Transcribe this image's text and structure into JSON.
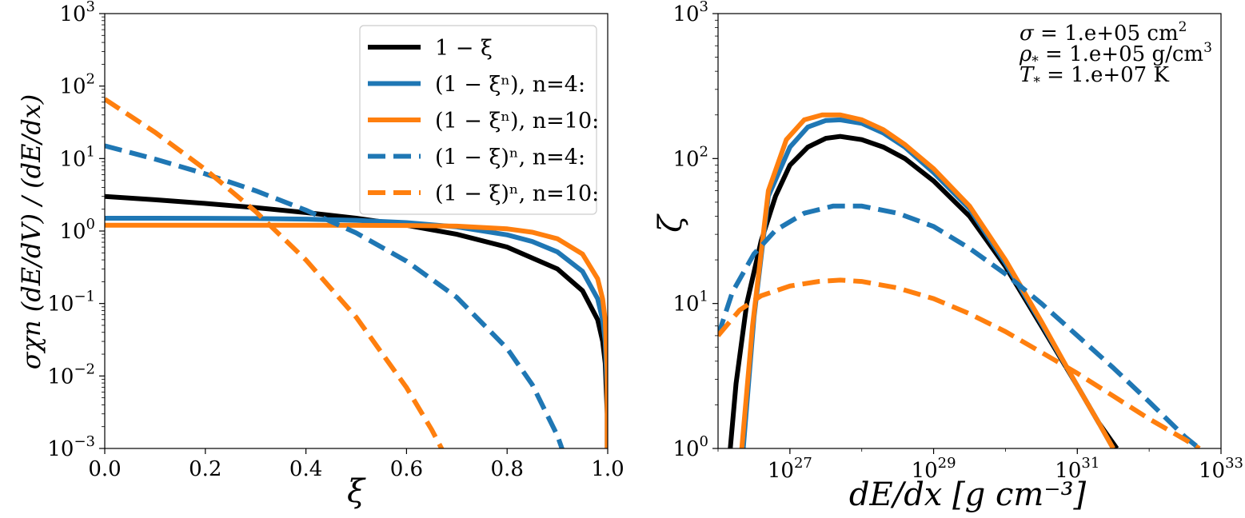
{
  "chart_data": [
    {
      "type": "line",
      "xscale": "linear",
      "yscale": "log",
      "xlim": [
        0,
        1
      ],
      "ylim": [
        0.001,
        1000
      ],
      "xlabel": "ξ",
      "ylabel": "σχn (dE/dV) / (dE/dx)",
      "xticks": [
        {
          "v": 0.0,
          "label": "0.0"
        },
        {
          "v": 0.2,
          "label": "0.2"
        },
        {
          "v": 0.4,
          "label": "0.4"
        },
        {
          "v": 0.6,
          "label": "0.6"
        },
        {
          "v": 0.8,
          "label": "0.8"
        },
        {
          "v": 1.0,
          "label": "1.0"
        }
      ],
      "yticks": [
        {
          "v": 0.001,
          "base": "10",
          "exp": "−3"
        },
        {
          "v": 0.01,
          "base": "10",
          "exp": "−2"
        },
        {
          "v": 0.1,
          "base": "10",
          "exp": "−1"
        },
        {
          "v": 1,
          "base": "10",
          "exp": "0"
        },
        {
          "v": 10,
          "base": "10",
          "exp": "1"
        },
        {
          "v": 100,
          "base": "10",
          "exp": "2"
        },
        {
          "v": 1000,
          "base": "10",
          "exp": "3"
        }
      ],
      "legend": {
        "location": "upper right",
        "entries": [
          {
            "label": "1 − ξ",
            "color": "#000000",
            "dash": "solid"
          },
          {
            "label": "(1 − ξⁿ), n=4:",
            "color": "#1f77b4",
            "dash": "solid"
          },
          {
            "label": "(1 − ξⁿ), n=10:",
            "color": "#ff7f0e",
            "dash": "solid"
          },
          {
            "label": "(1 − ξ)ⁿ, n=4:",
            "color": "#1f77b4",
            "dash": "dashed"
          },
          {
            "label": "(1 − ξ)ⁿ, n=10:",
            "color": "#ff7f0e",
            "dash": "dashed"
          }
        ]
      },
      "series": [
        {
          "name": "1 − ξ",
          "color": "#000000",
          "dash": "solid",
          "x": [
            0,
            0.1,
            0.2,
            0.3,
            0.4,
            0.5,
            0.6,
            0.7,
            0.8,
            0.9,
            0.95,
            0.98,
            0.99,
            0.995,
            0.999
          ],
          "y": [
            3.0,
            2.7,
            2.4,
            2.1,
            1.8,
            1.5,
            1.2,
            0.9,
            0.6,
            0.3,
            0.15,
            0.06,
            0.03,
            0.015,
            0.003
          ]
        },
        {
          "name": "(1 − ξⁿ), n=4:",
          "color": "#1f77b4",
          "dash": "solid",
          "x": [
            0,
            0.1,
            0.2,
            0.3,
            0.4,
            0.5,
            0.6,
            0.7,
            0.8,
            0.85,
            0.9,
            0.95,
            0.98,
            0.99,
            0.995,
            0.999
          ],
          "y": [
            1.5,
            1.5,
            1.4976,
            1.4878,
            1.4616,
            1.4063,
            1.3056,
            1.1399,
            0.8856,
            0.717,
            0.5159,
            0.2776,
            0.1165,
            0.0591,
            0.0298,
            0.006
          ]
        },
        {
          "name": "(1 − ξⁿ), n=10:",
          "color": "#ff7f0e",
          "dash": "solid",
          "x": [
            0,
            0.2,
            0.4,
            0.5,
            0.6,
            0.7,
            0.8,
            0.85,
            0.9,
            0.95,
            0.98,
            0.99,
            0.995,
            0.999
          ],
          "y": [
            1.2,
            1.2,
            1.1999,
            1.1988,
            1.1928,
            1.1661,
            1.0712,
            0.9632,
            0.7816,
            0.4814,
            0.2193,
            0.1148,
            0.0588,
            0.012
          ]
        },
        {
          "name": "(1 − ξ)ⁿ, n=4:",
          "color": "#1f77b4",
          "dash": "dashed",
          "x": [
            0,
            0.1,
            0.2,
            0.3,
            0.4,
            0.5,
            0.6,
            0.7,
            0.8,
            0.85,
            0.9,
            0.92
          ],
          "y": [
            15.0,
            9.84,
            6.14,
            3.6,
            1.94,
            0.94,
            0.384,
            0.1215,
            0.024,
            0.0076,
            0.0015,
            0.00061
          ]
        },
        {
          "name": "(1 − ξ)ⁿ, n=10:",
          "color": "#ff7f0e",
          "dash": "dashed",
          "x": [
            0,
            0.1,
            0.2,
            0.3,
            0.4,
            0.5,
            0.6,
            0.65,
            0.68
          ],
          "y": [
            66.0,
            23.0,
            7.09,
            1.86,
            0.399,
            0.0645,
            0.00692,
            0.00181,
            0.00073
          ]
        }
      ]
    },
    {
      "type": "line",
      "xscale": "log",
      "yscale": "log",
      "xlim_log10": [
        26,
        33
      ],
      "ylim": [
        1,
        1000
      ],
      "xlabel": "dE/dx [g cm⁻³]",
      "ylabel": "ζ",
      "xticks": [
        {
          "v": 27,
          "base": "10",
          "exp": "27"
        },
        {
          "v": 29,
          "base": "10",
          "exp": "29"
        },
        {
          "v": 31,
          "base": "10",
          "exp": "31"
        },
        {
          "v": 33,
          "base": "10",
          "exp": "33"
        }
      ],
      "yticks": [
        {
          "v": 1,
          "base": "10",
          "exp": "0"
        },
        {
          "v": 10,
          "base": "10",
          "exp": "1"
        },
        {
          "v": 100,
          "base": "10",
          "exp": "2"
        },
        {
          "v": 1000,
          "base": "10",
          "exp": "3"
        }
      ],
      "annotations": [
        {
          "prefix": "σ",
          "sub": "",
          "value": " = 1.e+05 cm",
          "sup": "2"
        },
        {
          "prefix": "ρ",
          "sub": "*",
          "value": " = 1.e+05 g/cm",
          "sup": "3"
        },
        {
          "prefix": "T",
          "sub": "*",
          "value": " = 1.e+07 K",
          "sup": ""
        }
      ],
      "series": [
        {
          "name": "1 − ξ",
          "color": "#000000",
          "dash": "solid",
          "log10x": [
            26.17,
            26.25,
            26.4,
            26.6,
            26.8,
            27.0,
            27.25,
            27.5,
            27.7,
            28.0,
            28.3,
            28.6,
            29.0,
            29.5,
            30.0,
            30.5,
            31.0,
            31.3,
            31.55
          ],
          "y": [
            1,
            2.8,
            10,
            27,
            55,
            90,
            120,
            138,
            142,
            135,
            120,
            100,
            70,
            40,
            18,
            7,
            2.7,
            1.5,
            1
          ]
        },
        {
          "name": "(1 − ξⁿ), n=4:",
          "color": "#1f77b4",
          "dash": "solid",
          "log10x": [
            26.35,
            26.5,
            26.7,
            27.0,
            27.25,
            27.5,
            27.7,
            28.0,
            28.3,
            28.6,
            29.0,
            29.5,
            30.0,
            30.5,
            31.0,
            31.3,
            31.5
          ],
          "y": [
            1,
            8,
            55,
            120,
            165,
            183,
            185,
            175,
            150,
            120,
            80,
            45,
            19,
            7.3,
            2.7,
            1.5,
            1
          ]
        },
        {
          "name": "(1 − ξⁿ), n=10:",
          "color": "#ff7f0e",
          "dash": "solid",
          "log10x": [
            26.33,
            26.48,
            26.7,
            26.95,
            27.2,
            27.45,
            27.7,
            28.0,
            28.3,
            28.6,
            29.0,
            29.5,
            30.0,
            30.5,
            31.0,
            31.3,
            31.5
          ],
          "y": [
            1,
            7,
            60,
            135,
            185,
            200,
            200,
            185,
            158,
            125,
            85,
            47,
            20,
            7.5,
            2.7,
            1.5,
            1
          ]
        },
        {
          "name": "(1 − ξ)ⁿ, n=4:",
          "color": "#1f77b4",
          "dash": "dashed",
          "log10x": [
            26.0,
            26.2,
            26.5,
            26.8,
            27.2,
            27.6,
            28.0,
            28.5,
            29.0,
            29.5,
            30.0,
            30.5,
            31.0,
            31.5,
            32.0,
            32.5,
            32.7
          ],
          "y": [
            6,
            12,
            22,
            32,
            42,
            47,
            47,
            42,
            34,
            24,
            16,
            10,
            6,
            3.6,
            2.1,
            1.2,
            1
          ]
        },
        {
          "name": "(1 − ξ)ⁿ, n=10:",
          "color": "#ff7f0e",
          "dash": "dashed",
          "log10x": [
            26.0,
            26.3,
            26.6,
            27.0,
            27.4,
            27.7,
            28.0,
            28.5,
            29.0,
            29.5,
            30.0,
            30.5,
            31.0,
            31.5,
            32.0,
            32.5,
            32.7
          ],
          "y": [
            6,
            9,
            11.3,
            13.2,
            14.2,
            14.5,
            14.2,
            12.8,
            10.8,
            8.5,
            6.4,
            4.6,
            3.3,
            2.3,
            1.6,
            1.15,
            1
          ]
        }
      ]
    }
  ]
}
